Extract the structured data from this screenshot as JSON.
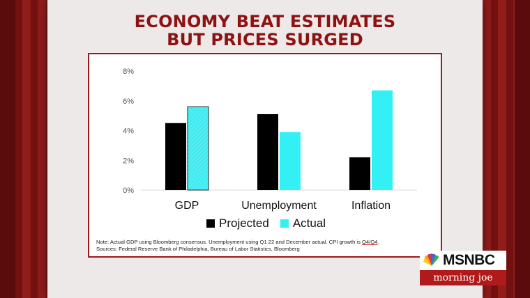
{
  "headline": {
    "line1": "ECONOMY BEAT ESTIMATES",
    "line2": "BUT PRICES SURGED"
  },
  "chart_data": {
    "type": "bar",
    "categories": [
      "GDP",
      "Unemployment",
      "Inflation"
    ],
    "series": [
      {
        "name": "Projected",
        "values": [
          4.5,
          5.1,
          2.2
        ],
        "color": "#000000"
      },
      {
        "name": "Actual",
        "values": [
          5.6,
          3.9,
          6.7
        ],
        "color": "#33f0f5"
      }
    ],
    "ylim": [
      0,
      8
    ],
    "yticks": [
      "0%",
      "2%",
      "4%",
      "6%",
      "8%"
    ],
    "ytick_values": [
      0,
      2,
      4,
      6,
      8
    ],
    "grid": false,
    "legend_position": "bottom",
    "hatched_bar": {
      "series": "Actual",
      "category": "GDP"
    }
  },
  "note": {
    "line1_prefix": "Note: Actual GDP using Bloomberg consensus. Unemployment using Q1 22 and December actual. CPI growth is ",
    "line1_underlined": "Q4/Q4",
    "line1_suffix": ".",
    "line2": "Sources: Federal Reserve Bank of Philadelphia, Bureau of Labor Statistics, Bloomberg"
  },
  "logo": {
    "network": "MSNBC",
    "show": "morning joe"
  }
}
